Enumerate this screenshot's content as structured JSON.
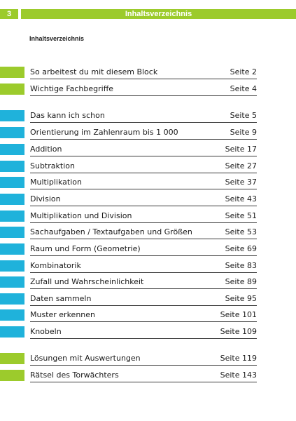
{
  "header": {
    "page_number": "3",
    "title": "Inhaltsverzeichnis"
  },
  "subtitle": "Inhaltsverzeichnis",
  "colors": {
    "green": "#9ccb2c",
    "blue": "#1fb2db"
  },
  "toc": [
    {
      "label": "So arbeitest du mit diesem Block",
      "page": "Seite 2",
      "color": "green"
    },
    {
      "label": "Wichtige Fachbegriffe",
      "page": "Seite 4",
      "color": "green"
    },
    {
      "label": "Das kann ich schon",
      "page": "Seite 5",
      "color": "blue"
    },
    {
      "label": "Orientierung im Zahlenraum bis 1 000",
      "page": "Seite 9",
      "color": "blue"
    },
    {
      "label": "Addition",
      "page": "Seite 17",
      "color": "blue"
    },
    {
      "label": "Subtraktion",
      "page": "Seite 27",
      "color": "blue"
    },
    {
      "label": "Multiplikation",
      "page": "Seite 37",
      "color": "blue"
    },
    {
      "label": "Division",
      "page": "Seite 43",
      "color": "blue"
    },
    {
      "label": "Multiplikation und Division",
      "page": "Seite 51",
      "color": "blue"
    },
    {
      "label": "Sachaufgaben / Textaufgaben und Größen",
      "page": "Seite 53",
      "color": "blue"
    },
    {
      "label": "Raum und Form (Geometrie)",
      "page": "Seite 69",
      "color": "blue"
    },
    {
      "label": "Kombinatorik",
      "page": "Seite 83",
      "color": "blue"
    },
    {
      "label": "Zufall und Wahrscheinlichkeit",
      "page": "Seite 89",
      "color": "blue"
    },
    {
      "label": "Daten sammeln",
      "page": "Seite 95",
      "color": "blue"
    },
    {
      "label": "Muster erkennen",
      "page": "Seite 101",
      "color": "blue"
    },
    {
      "label": "Knobeln",
      "page": "Seite 109",
      "color": "blue"
    },
    {
      "label": "Lösungen mit Auswertungen",
      "page": "Seite 119",
      "color": "green"
    },
    {
      "label": "Rätsel des Torwächters",
      "page": "Seite 143",
      "color": "green"
    }
  ]
}
